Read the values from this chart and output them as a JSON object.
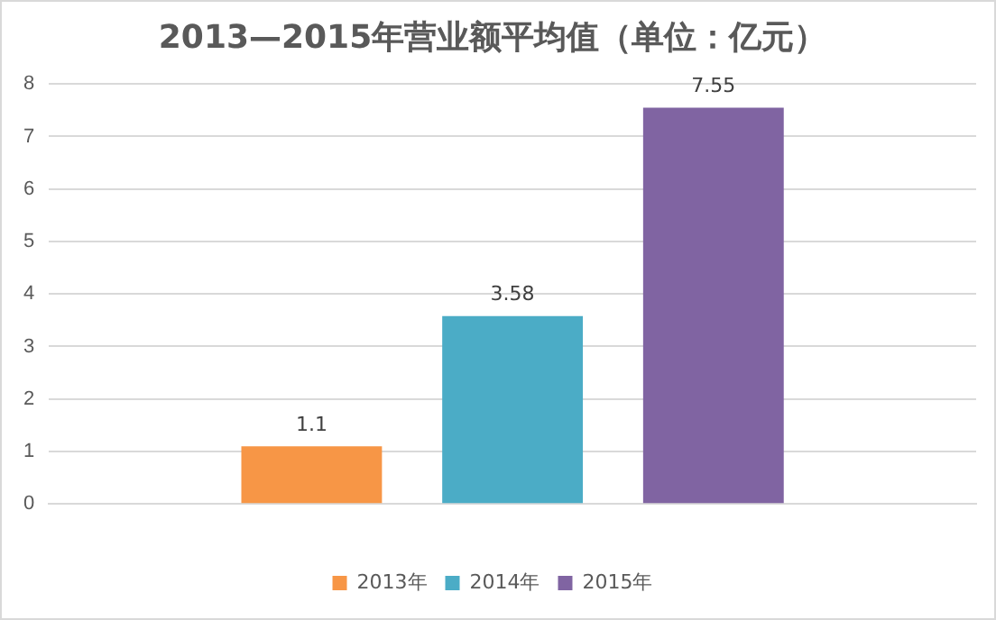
{
  "chart_data": {
    "type": "bar",
    "title": "2013—2015年营业额平均值（单位：亿元）",
    "categories": [
      null
    ],
    "series": [
      {
        "name": "2013年",
        "color": "#f79646",
        "values": [
          1.1
        ]
      },
      {
        "name": "2014年",
        "color": "#4bacc6",
        "values": [
          3.58
        ]
      },
      {
        "name": "2015年",
        "color": "#8064a2",
        "values": [
          7.55
        ]
      }
    ],
    "ylim": [
      0,
      8
    ],
    "yticks": [
      0,
      1,
      2,
      3,
      4,
      5,
      6,
      7,
      8
    ],
    "grid": "y",
    "legend": "bottom",
    "data_labels": true
  }
}
